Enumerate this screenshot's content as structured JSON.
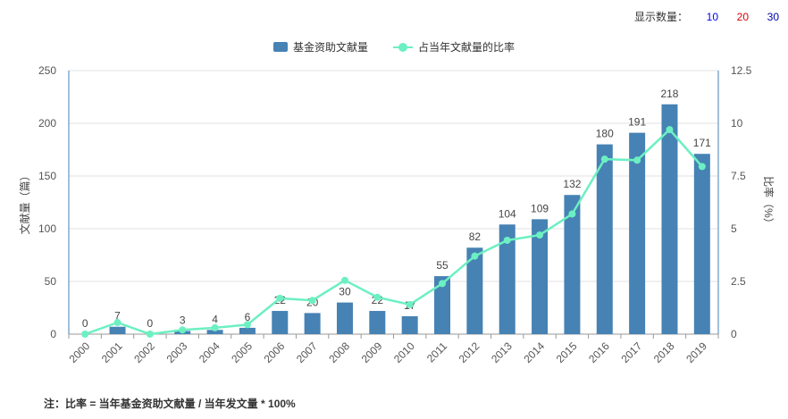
{
  "display_count": {
    "label": "显示数量：",
    "options": [
      {
        "label": "10",
        "color": "#0000ff"
      },
      {
        "label": "20",
        "color": "#e00000"
      },
      {
        "label": "30",
        "color": "#0000aa"
      }
    ]
  },
  "footnote": "注：比率 = 当年基金资助文献量 / 当年发文量 * 100%",
  "chart_data": {
    "type": "bar",
    "categories": [
      "2000",
      "2001",
      "2002",
      "2003",
      "2004",
      "2005",
      "2006",
      "2007",
      "2008",
      "2009",
      "2010",
      "2011",
      "2012",
      "2013",
      "2014",
      "2015",
      "2016",
      "2017",
      "2018",
      "2019"
    ],
    "series": [
      {
        "name": "基金资助文献量",
        "type": "bar",
        "axis": "left",
        "color": "#4682b4",
        "values": [
          0,
          7,
          0,
          3,
          4,
          6,
          22,
          20,
          30,
          22,
          17,
          55,
          82,
          104,
          109,
          132,
          180,
          191,
          218,
          171
        ]
      },
      {
        "name": "占当年文献量的比率",
        "type": "line",
        "axis": "right",
        "color": "#6cf0c2",
        "values": [
          0,
          0.55,
          0,
          0.2,
          0.3,
          0.45,
          1.7,
          1.6,
          2.55,
          1.75,
          1.4,
          2.4,
          3.7,
          4.45,
          4.7,
          5.7,
          8.3,
          8.25,
          9.7,
          7.95
        ]
      }
    ],
    "ylabel": "文献量（篇）",
    "ylabel_right": "比率（%）",
    "ylim": [
      0,
      250
    ],
    "yticks": [
      "0",
      "50",
      "100",
      "150",
      "200",
      "250"
    ],
    "ylim_right": [
      0,
      12.5
    ],
    "yticks_right": [
      "0",
      "2.5",
      "5",
      "7.5",
      "10",
      "12.5"
    ],
    "grid": true,
    "legend_position": "top-center"
  }
}
